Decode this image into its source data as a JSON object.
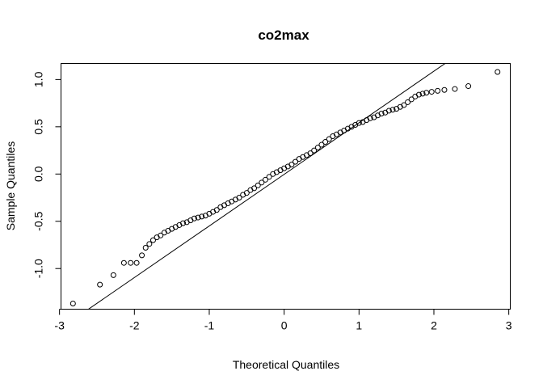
{
  "chart_data": {
    "type": "scatter",
    "title": "co2max",
    "xlabel": "Theoretical Quantiles",
    "ylabel": "Sample Quantiles",
    "xlim": [
      -2.98,
      3.02
    ],
    "ylim": [
      -1.43,
      1.17
    ],
    "xticks": [
      "-3",
      "-2",
      "-1",
      "0",
      "1",
      "2",
      "3"
    ],
    "yticks": [
      "-1.0",
      "-0.5",
      "0.0",
      "0.5",
      "1.0"
    ],
    "grid": false,
    "qqline": {
      "x": [
        -2.65,
        2.15
      ],
      "y": [
        -1.45,
        1.17
      ]
    },
    "x": [
      -2.82,
      -2.46,
      -2.28,
      -2.14,
      -2.05,
      -1.97,
      -1.9,
      -1.85,
      -1.8,
      -1.75,
      -1.7,
      -1.65,
      -1.6,
      -1.55,
      -1.5,
      -1.45,
      -1.4,
      -1.35,
      -1.3,
      -1.25,
      -1.2,
      -1.15,
      -1.1,
      -1.05,
      -1.0,
      -0.95,
      -0.9,
      -0.85,
      -0.8,
      -0.75,
      -0.7,
      -0.65,
      -0.6,
      -0.55,
      -0.5,
      -0.45,
      -0.4,
      -0.35,
      -0.3,
      -0.25,
      -0.2,
      -0.15,
      -0.1,
      -0.05,
      0.0,
      0.05,
      0.1,
      0.15,
      0.2,
      0.25,
      0.3,
      0.35,
      0.4,
      0.45,
      0.5,
      0.55,
      0.6,
      0.65,
      0.7,
      0.75,
      0.8,
      0.85,
      0.9,
      0.95,
      1.0,
      1.05,
      1.1,
      1.15,
      1.2,
      1.25,
      1.3,
      1.35,
      1.4,
      1.45,
      1.5,
      1.55,
      1.6,
      1.65,
      1.7,
      1.75,
      1.8,
      1.85,
      1.9,
      1.97,
      2.05,
      2.14,
      2.28,
      2.46,
      2.85
    ],
    "y": [
      -1.37,
      -1.17,
      -1.07,
      -0.94,
      -0.94,
      -0.94,
      -0.86,
      -0.78,
      -0.74,
      -0.7,
      -0.67,
      -0.65,
      -0.62,
      -0.6,
      -0.58,
      -0.56,
      -0.54,
      -0.52,
      -0.51,
      -0.49,
      -0.47,
      -0.46,
      -0.45,
      -0.44,
      -0.42,
      -0.4,
      -0.38,
      -0.35,
      -0.33,
      -0.31,
      -0.29,
      -0.27,
      -0.25,
      -0.22,
      -0.2,
      -0.17,
      -0.15,
      -0.12,
      -0.09,
      -0.06,
      -0.03,
      0.0,
      0.02,
      0.04,
      0.06,
      0.08,
      0.1,
      0.13,
      0.16,
      0.18,
      0.2,
      0.22,
      0.25,
      0.28,
      0.31,
      0.34,
      0.37,
      0.4,
      0.42,
      0.44,
      0.46,
      0.48,
      0.5,
      0.52,
      0.54,
      0.55,
      0.57,
      0.59,
      0.6,
      0.62,
      0.64,
      0.65,
      0.67,
      0.68,
      0.69,
      0.71,
      0.73,
      0.76,
      0.79,
      0.82,
      0.84,
      0.85,
      0.86,
      0.87,
      0.88,
      0.89,
      0.9,
      0.93,
      1.08
    ]
  }
}
